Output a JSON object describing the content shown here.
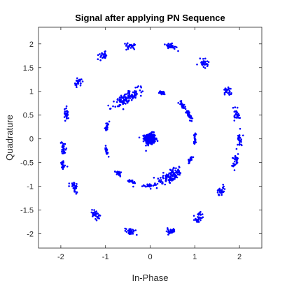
{
  "chart_data": {
    "type": "scatter",
    "title": "Signal after applying PN Sequence",
    "xlabel": "In-Phase",
    "ylabel": "Quadrature",
    "xlim": [
      -2.5,
      2.5
    ],
    "ylim": [
      -2.3,
      2.35
    ],
    "xticks": [
      -2,
      -1,
      0,
      1,
      2
    ],
    "xtick_labels": [
      "-2",
      "-1",
      "0",
      "1",
      "2"
    ],
    "yticks": [
      -2,
      -1.5,
      -1,
      -0.5,
      0,
      0.5,
      1,
      1.5,
      2
    ],
    "ytick_labels": [
      "-2",
      "-1.5",
      "-1",
      "-0.5",
      "0",
      "0.5",
      "1",
      "1.5",
      "2"
    ],
    "grid": false,
    "marker_color": "#0000ff",
    "clusters": [
      {
        "ring": "center",
        "center": [
          0,
          0
        ],
        "spread": [
          0.1,
          0.1
        ],
        "count": 320
      },
      {
        "ring": "inner",
        "center": [
          1.0,
          0.0
        ],
        "spread": [
          0.09,
          0.03
        ],
        "count": 18
      },
      {
        "ring": "inner",
        "center": [
          0.87,
          0.5
        ],
        "spread": [
          0.12,
          0.05
        ],
        "count": 35
      },
      {
        "ring": "inner",
        "center": [
          0.72,
          0.72
        ],
        "spread": [
          0.09,
          0.04
        ],
        "count": 22
      },
      {
        "ring": "inner",
        "center": [
          0.25,
          0.97
        ],
        "spread": [
          0.04,
          0.1
        ],
        "count": 18
      },
      {
        "ring": "inner",
        "center": [
          -0.5,
          0.87
        ],
        "spread": [
          0.28,
          0.12
        ],
        "count": 120
      },
      {
        "ring": "inner",
        "center": [
          -0.97,
          0.26
        ],
        "spread": [
          0.1,
          0.03
        ],
        "count": 20
      },
      {
        "ring": "inner",
        "center": [
          -0.97,
          -0.26
        ],
        "spread": [
          0.1,
          0.03
        ],
        "count": 20
      },
      {
        "ring": "inner",
        "center": [
          -0.72,
          -0.72
        ],
        "spread": [
          0.07,
          0.05
        ],
        "count": 22
      },
      {
        "ring": "inner",
        "center": [
          -0.42,
          -0.9
        ],
        "spread": [
          0.05,
          0.09
        ],
        "count": 22
      },
      {
        "ring": "inner",
        "center": [
          -0.05,
          -0.98
        ],
        "spread": [
          0.04,
          0.1
        ],
        "count": 20
      },
      {
        "ring": "inner",
        "center": [
          0.45,
          -0.78
        ],
        "spread": [
          0.3,
          0.14
        ],
        "count": 120
      },
      {
        "ring": "inner",
        "center": [
          0.9,
          -0.45
        ],
        "spread": [
          0.08,
          0.04
        ],
        "count": 20
      },
      {
        "ring": "outer",
        "center": [
          2.0,
          0.0
        ],
        "spread": [
          0.07,
          0.12
        ],
        "count": 30
      },
      {
        "ring": "outer",
        "center": [
          1.94,
          0.52
        ],
        "spread": [
          0.08,
          0.12
        ],
        "count": 30
      },
      {
        "ring": "outer",
        "center": [
          1.73,
          1.0
        ],
        "spread": [
          0.08,
          0.11
        ],
        "count": 30
      },
      {
        "ring": "outer",
        "center": [
          1.22,
          1.6
        ],
        "spread": [
          0.1,
          0.1
        ],
        "count": 32
      },
      {
        "ring": "outer",
        "center": [
          0.45,
          1.95
        ],
        "spread": [
          0.12,
          0.07
        ],
        "count": 32
      },
      {
        "ring": "outer",
        "center": [
          -0.45,
          1.95
        ],
        "spread": [
          0.12,
          0.07
        ],
        "count": 30
      },
      {
        "ring": "outer",
        "center": [
          -1.05,
          1.75
        ],
        "spread": [
          0.1,
          0.09
        ],
        "count": 30
      },
      {
        "ring": "outer",
        "center": [
          -1.6,
          1.2
        ],
        "spread": [
          0.09,
          0.1
        ],
        "count": 32
      },
      {
        "ring": "outer",
        "center": [
          -1.88,
          0.55
        ],
        "spread": [
          0.07,
          0.12
        ],
        "count": 30
      },
      {
        "ring": "outer",
        "center": [
          -1.95,
          -0.2
        ],
        "spread": [
          0.07,
          0.12
        ],
        "count": 30
      },
      {
        "ring": "outer",
        "center": [
          -1.95,
          -0.55
        ],
        "spread": [
          0.07,
          0.08
        ],
        "count": 20
      },
      {
        "ring": "outer",
        "center": [
          -1.7,
          -1.0
        ],
        "spread": [
          0.08,
          0.1
        ],
        "count": 30
      },
      {
        "ring": "outer",
        "center": [
          -1.22,
          -1.6
        ],
        "spread": [
          0.1,
          0.09
        ],
        "count": 32
      },
      {
        "ring": "outer",
        "center": [
          -0.45,
          -1.95
        ],
        "spread": [
          0.12,
          0.07
        ],
        "count": 32
      },
      {
        "ring": "outer",
        "center": [
          0.45,
          -1.95
        ],
        "spread": [
          0.12,
          0.07
        ],
        "count": 30
      },
      {
        "ring": "outer",
        "center": [
          1.1,
          -1.65
        ],
        "spread": [
          0.1,
          0.09
        ],
        "count": 30
      },
      {
        "ring": "outer",
        "center": [
          1.58,
          -1.1
        ],
        "spread": [
          0.09,
          0.1
        ],
        "count": 30
      },
      {
        "ring": "outer",
        "center": [
          1.92,
          -0.45
        ],
        "spread": [
          0.08,
          0.12
        ],
        "count": 30
      }
    ]
  }
}
